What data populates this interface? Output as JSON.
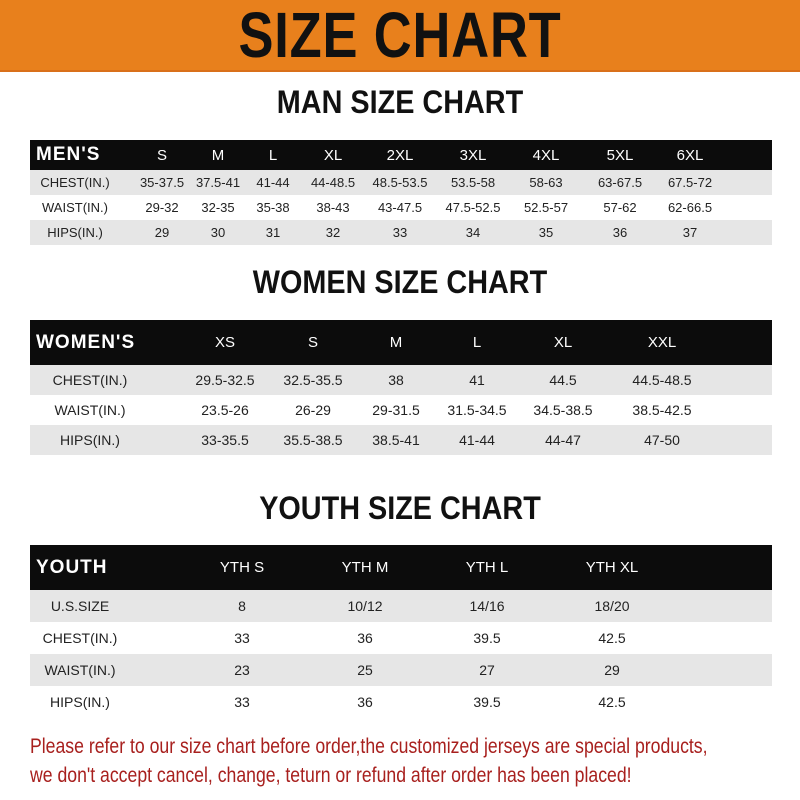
{
  "banner_title": "SIZE CHART",
  "men": {
    "title": "MAN SIZE CHART",
    "header": [
      "MEN'S",
      "S",
      "M",
      "L",
      "XL",
      "2XL",
      "3XL",
      "4XL",
      "5XL",
      "6XL"
    ],
    "rows": [
      [
        "CHEST(IN.)",
        "35-37.5",
        "37.5-41",
        "41-44",
        "44-48.5",
        "48.5-53.5",
        "53.5-58",
        "58-63",
        "63-67.5",
        "67.5-72"
      ],
      [
        "WAIST(IN.)",
        "29-32",
        "32-35",
        "35-38",
        "38-43",
        "43-47.5",
        "47.5-52.5",
        "52.5-57",
        "57-62",
        "62-66.5"
      ],
      [
        "HIPS(IN.)",
        "29",
        "30",
        "31",
        "32",
        "33",
        "34",
        "35",
        "36",
        "37"
      ]
    ]
  },
  "women": {
    "title": "WOMEN SIZE CHART",
    "header": [
      "WOMEN'S",
      "XS",
      "S",
      "M",
      "L",
      "XL",
      "XXL"
    ],
    "rows": [
      [
        "CHEST(IN.)",
        "29.5-32.5",
        "32.5-35.5",
        "38",
        "41",
        "44.5",
        "44.5-48.5"
      ],
      [
        "WAIST(IN.)",
        "23.5-26",
        "26-29",
        "29-31.5",
        "31.5-34.5",
        "34.5-38.5",
        "38.5-42.5"
      ],
      [
        "HIPS(IN.)",
        "33-35.5",
        "35.5-38.5",
        "38.5-41",
        "41-44",
        "44-47",
        "47-50"
      ]
    ]
  },
  "youth": {
    "title": "YOUTH SIZE CHART",
    "header": [
      "YOUTH",
      "YTH S",
      "YTH M",
      "YTH L",
      "YTH XL"
    ],
    "rows": [
      [
        "U.S.SIZE",
        "8",
        "10/12",
        "14/16",
        "18/20"
      ],
      [
        "CHEST(IN.)",
        "33",
        "36",
        "39.5",
        "42.5"
      ],
      [
        "WAIST(IN.)",
        "23",
        "25",
        "27",
        "29"
      ],
      [
        "HIPS(IN.)",
        "33",
        "36",
        "39.5",
        "42.5"
      ]
    ]
  },
  "notice": {
    "line1": "Please refer to our size chart before order,the customized jerseys are special products,",
    "line2": "we don't accept cancel, change, teturn or refund after order has been placed!"
  },
  "colors": {
    "banner": "#e8801c",
    "header_row": "#0c0c0c",
    "stripe": "#e6e6e6",
    "notice": "#a8201e"
  }
}
